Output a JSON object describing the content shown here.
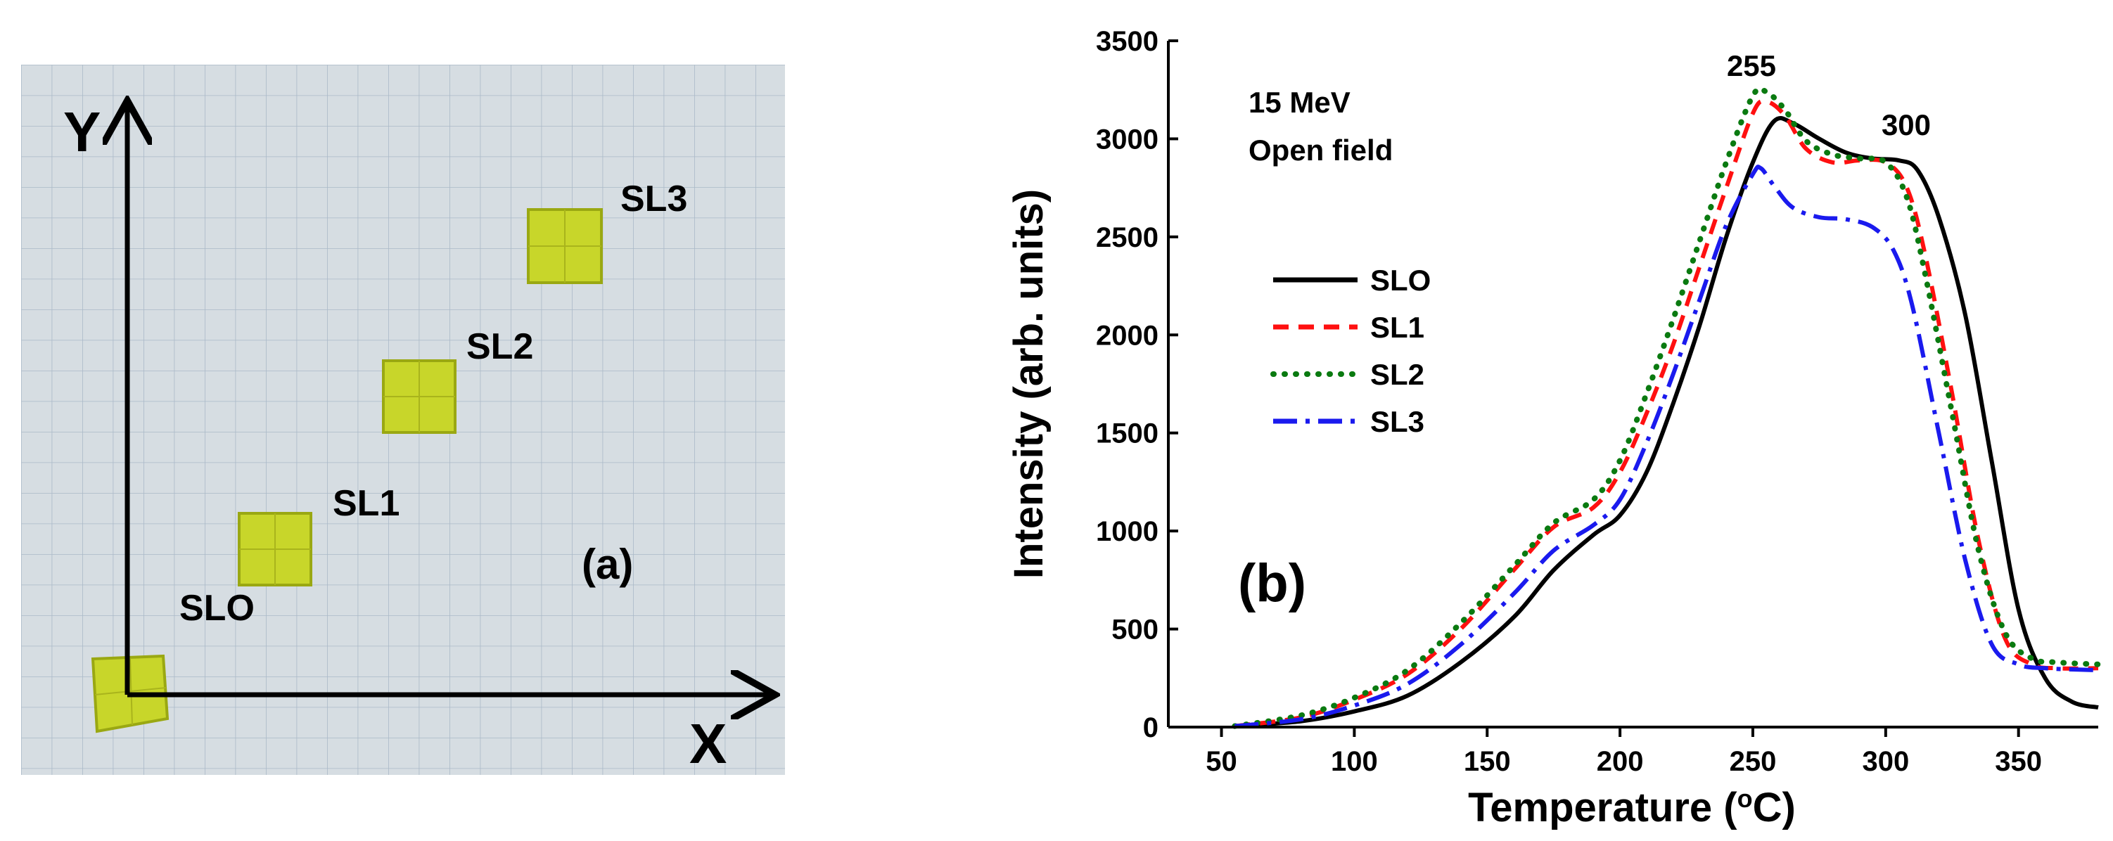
{
  "panel_a": {
    "panel_label": "(a)",
    "x_axis_label": "X",
    "y_axis_label": "Y",
    "samples": [
      {
        "name": "SLO"
      },
      {
        "name": "SL1"
      },
      {
        "name": "SL2"
      },
      {
        "name": "SL3"
      }
    ],
    "colors": {
      "paper": "#d6dde2",
      "grid": "#aab9c8",
      "crystal": "#c8d62a",
      "crystal_edge": "#9aa812"
    }
  },
  "panel_b": {
    "panel_label": "(b)",
    "annotation_line1": "15 MeV",
    "annotation_line2": "Open field",
    "peak_label_1": "255",
    "peak_label_2": "300"
  },
  "chart_data": {
    "type": "line",
    "xlabel_prefix": "Temperature (",
    "xlabel_sup": "o",
    "xlabel_suffix": "C)",
    "ylabel": "Intensity (arb. units)",
    "xlim": [
      30,
      380
    ],
    "ylim": [
      0,
      3500
    ],
    "xticks": [
      50,
      100,
      150,
      200,
      250,
      300,
      350
    ],
    "yticks": [
      0,
      500,
      1000,
      1500,
      2000,
      2500,
      3000,
      3500
    ],
    "legend_position": "middle-left",
    "series": [
      {
        "name": "SLO",
        "color": "#000000",
        "style": "solid",
        "x": [
          55,
          80,
          100,
          120,
          140,
          160,
          175,
          190,
          200,
          210,
          220,
          230,
          240,
          250,
          258,
          265,
          275,
          285,
          295,
          305,
          312,
          320,
          330,
          340,
          350,
          360,
          370,
          380
        ],
        "y": [
          5,
          30,
          80,
          160,
          330,
          560,
          800,
          980,
          1080,
          1300,
          1650,
          2050,
          2500,
          2880,
          3090,
          3080,
          3000,
          2930,
          2900,
          2890,
          2840,
          2600,
          2100,
          1350,
          600,
          250,
          130,
          100
        ]
      },
      {
        "name": "SL1",
        "color": "#ff1010",
        "style": "dashed",
        "x": [
          55,
          80,
          100,
          120,
          140,
          160,
          175,
          190,
          200,
          210,
          220,
          230,
          240,
          250,
          255,
          262,
          270,
          280,
          290,
          300,
          308,
          315,
          325,
          335,
          345,
          355,
          365,
          380
        ],
        "y": [
          5,
          50,
          140,
          270,
          500,
          800,
          1020,
          1120,
          1300,
          1600,
          1950,
          2350,
          2750,
          3130,
          3190,
          3120,
          2950,
          2880,
          2890,
          2880,
          2750,
          2400,
          1700,
          950,
          450,
          320,
          300,
          300
        ]
      },
      {
        "name": "SL2",
        "color": "#0a7a10",
        "style": "dotted",
        "x": [
          55,
          80,
          100,
          120,
          140,
          160,
          175,
          190,
          200,
          210,
          220,
          230,
          240,
          250,
          255,
          262,
          270,
          280,
          290,
          300,
          308,
          315,
          325,
          335,
          345,
          355,
          365,
          380
        ],
        "y": [
          5,
          60,
          150,
          290,
          530,
          820,
          1040,
          1160,
          1360,
          1700,
          2080,
          2480,
          2880,
          3220,
          3240,
          3150,
          2990,
          2920,
          2900,
          2880,
          2700,
          2300,
          1600,
          900,
          480,
          350,
          330,
          320
        ]
      },
      {
        "name": "SL3",
        "color": "#1a1aee",
        "style": "dashdot",
        "x": [
          55,
          80,
          100,
          120,
          140,
          160,
          175,
          190,
          200,
          210,
          220,
          230,
          240,
          250,
          253,
          258,
          265,
          275,
          285,
          295,
          303,
          310,
          320,
          330,
          340,
          350,
          360,
          380
        ],
        "y": [
          5,
          40,
          110,
          220,
          420,
          680,
          900,
          1030,
          1160,
          1450,
          1800,
          2180,
          2560,
          2820,
          2850,
          2760,
          2650,
          2600,
          2590,
          2550,
          2430,
          2150,
          1500,
          850,
          420,
          320,
          300,
          290
        ]
      }
    ]
  }
}
